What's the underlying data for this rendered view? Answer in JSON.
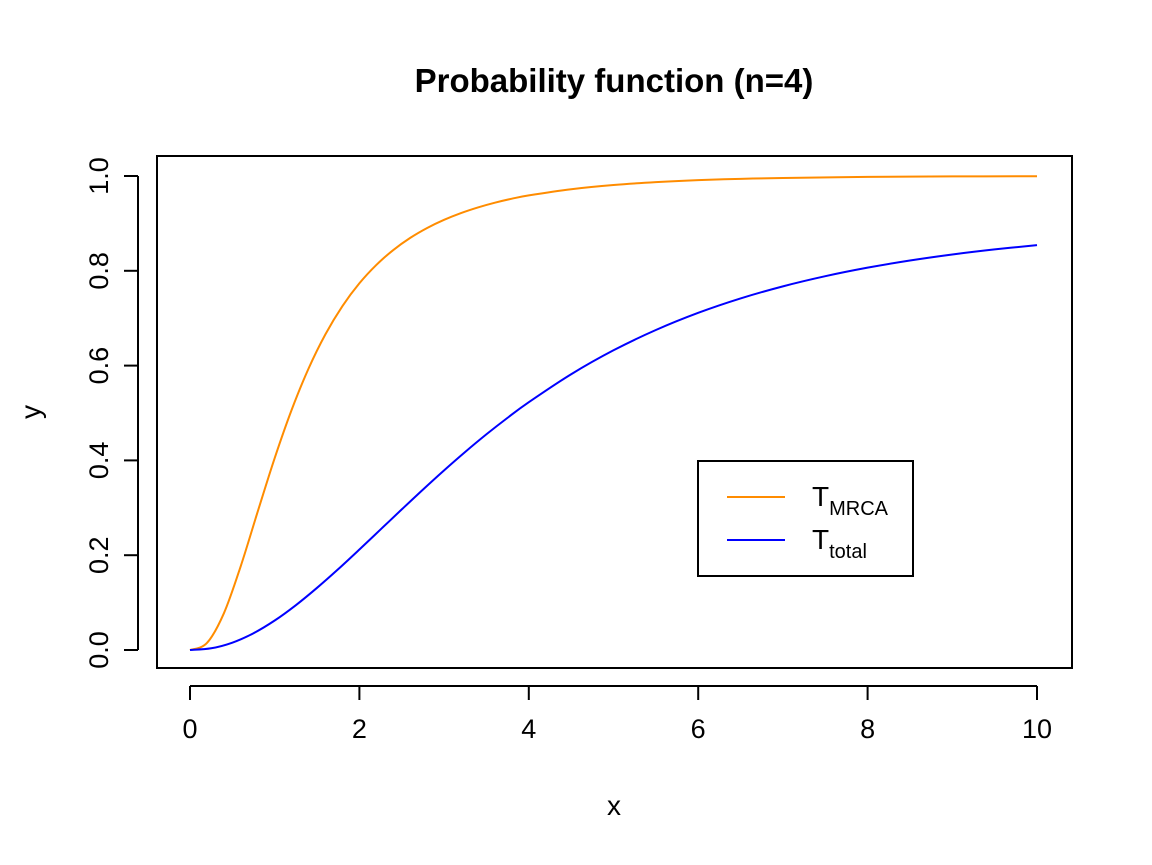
{
  "chart_data": {
    "type": "line",
    "title": "Probability function (n=4)",
    "xlabel": "x",
    "ylabel": "y",
    "xlim": [
      0,
      10
    ],
    "ylim": [
      0,
      1
    ],
    "xticks": [
      0,
      2,
      4,
      6,
      8,
      10
    ],
    "yticks": [
      0.0,
      0.2,
      0.4,
      0.6,
      0.8,
      1.0
    ],
    "xtick_labels": [
      "0",
      "2",
      "4",
      "6",
      "8",
      "10"
    ],
    "ytick_labels": [
      "0.0",
      "0.2",
      "0.4",
      "0.6",
      "0.8",
      "1.0"
    ],
    "grid": false,
    "legend_position": "center-right",
    "series": [
      {
        "name": "T_MRCA",
        "label_main": "T",
        "label_sub": "MRCA",
        "color": "#FF8C00",
        "x": [
          0,
          0.2,
          0.4,
          0.6,
          0.8,
          1.0,
          1.2,
          1.4,
          1.6,
          1.8,
          2.0,
          2.2,
          2.4,
          2.6,
          2.8,
          3.0,
          3.2,
          3.4,
          3.6,
          3.8,
          4.0,
          4.5,
          5.0,
          5.5,
          6.0,
          6.5,
          7.0,
          8.0,
          9.0,
          10.0
        ],
        "y": [
          0,
          0.0148,
          0.0774,
          0.1774,
          0.2923,
          0.405,
          0.5066,
          0.5939,
          0.6664,
          0.7257,
          0.7737,
          0.8124,
          0.8438,
          0.8694,
          0.8903,
          0.9075,
          0.9218,
          0.9337,
          0.9437,
          0.9521,
          0.9591,
          0.9721,
          0.981,
          0.987,
          0.9912,
          0.994,
          0.9959,
          0.9981,
          0.9991,
          0.9996
        ]
      },
      {
        "name": "T_total",
        "label_main": "T",
        "label_sub": "total",
        "color": "#0000FF",
        "x": [
          0,
          0.25,
          0.5,
          0.75,
          1.0,
          1.25,
          1.5,
          1.75,
          2.0,
          2.25,
          2.5,
          2.75,
          3.0,
          3.25,
          3.5,
          3.75,
          4.0,
          4.5,
          5.0,
          5.5,
          6.0,
          6.5,
          7.0,
          7.5,
          8.0,
          8.5,
          9.0,
          9.5,
          10.0
        ],
        "y": [
          0,
          0.0036,
          0.0155,
          0.0354,
          0.0622,
          0.0946,
          0.1312,
          0.1706,
          0.212,
          0.2543,
          0.2966,
          0.3384,
          0.379,
          0.418,
          0.4551,
          0.49,
          0.5228,
          0.5818,
          0.6323,
          0.6751,
          0.7113,
          0.7417,
          0.7672,
          0.7886,
          0.8066,
          0.8217,
          0.8344,
          0.8451,
          0.8542
        ]
      }
    ]
  }
}
